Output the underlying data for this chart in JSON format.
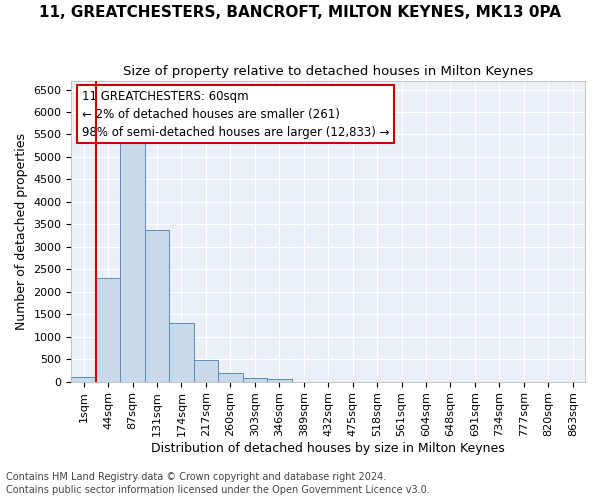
{
  "title": "11, GREATCHESTERS, BANCROFT, MILTON KEYNES, MK13 0PA",
  "subtitle": "Size of property relative to detached houses in Milton Keynes",
  "xlabel": "Distribution of detached houses by size in Milton Keynes",
  "ylabel": "Number of detached properties",
  "footnote1": "Contains HM Land Registry data © Crown copyright and database right 2024.",
  "footnote2": "Contains public sector information licensed under the Open Government Licence v3.0.",
  "bar_labels": [
    "1sqm",
    "44sqm",
    "87sqm",
    "131sqm",
    "174sqm",
    "217sqm",
    "260sqm",
    "303sqm",
    "346sqm",
    "389sqm",
    "432sqm",
    "475sqm",
    "518sqm",
    "561sqm",
    "604sqm",
    "648sqm",
    "691sqm",
    "734sqm",
    "777sqm",
    "820sqm",
    "863sqm"
  ],
  "bar_values": [
    100,
    2300,
    5400,
    3380,
    1300,
    480,
    200,
    80,
    50,
    0,
    0,
    0,
    0,
    0,
    0,
    0,
    0,
    0,
    0,
    0,
    0
  ],
  "bar_color": "#c9d9ec",
  "bar_edge_color": "#5b8db8",
  "annotation_text": "11 GREATCHESTERS: 60sqm\n← 2% of detached houses are smaller (261)\n98% of semi-detached houses are larger (12,833) →",
  "annotation_box_color": "#ffffff",
  "annotation_box_edge": "#cc0000",
  "ylim": [
    0,
    6700
  ],
  "yticks": [
    0,
    500,
    1000,
    1500,
    2000,
    2500,
    3000,
    3500,
    4000,
    4500,
    5000,
    5500,
    6000,
    6500
  ],
  "bg_color": "#eaf0f8",
  "grid_color": "#ffffff",
  "title_fontsize": 11,
  "subtitle_fontsize": 9.5,
  "axis_label_fontsize": 9,
  "tick_fontsize": 8,
  "annotation_fontsize": 8.5,
  "footnote_fontsize": 7,
  "red_line_color": "#cc0000",
  "fig_bg_color": "#ffffff"
}
